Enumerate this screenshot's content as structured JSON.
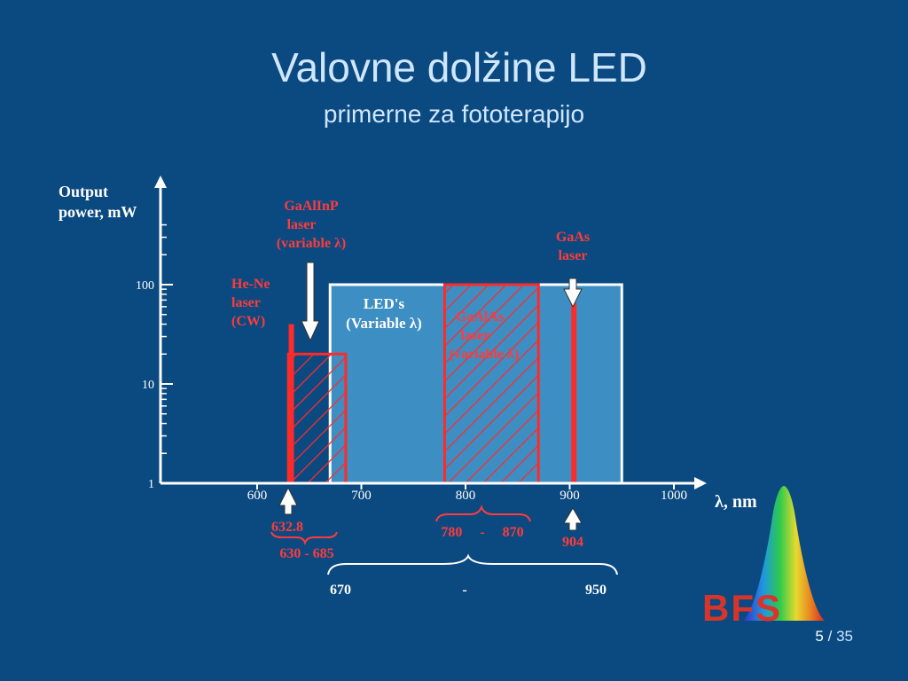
{
  "slide": {
    "title": "Valovne dolžine LED",
    "subtitle": "primerne za fototerapijo",
    "page": {
      "current": "5",
      "separator": "/",
      "total": "35"
    },
    "logo_text": "BFS"
  },
  "colors": {
    "background": "#0b4a80",
    "led_fill": "#3d8ec2",
    "laser_red": "#ff2a2a",
    "text_light": "#cfe6ff"
  },
  "chart_data": {
    "type": "bar",
    "ylabel_line1": "Output",
    "ylabel_line2": "power, mW",
    "xlabel": "λ, nm",
    "xlim": [
      550,
      1060
    ],
    "yscale": "log",
    "ylim": [
      1,
      100
    ],
    "x_ticks": [
      600,
      700,
      800,
      900,
      1000
    ],
    "y_ticks": [
      1,
      10,
      100
    ],
    "regions": [
      {
        "name": "LED's",
        "label_line1": "LED's",
        "label_line2": "(Variable λ)",
        "x_from": 670,
        "x_to": 950,
        "y_max": 100,
        "style": "solid-blue"
      },
      {
        "name": "GaAlInP laser",
        "label_lines": [
          "GaAlInP",
          "laser",
          "(variable λ)"
        ],
        "x_from": 630,
        "x_to": 685,
        "y_max": 20,
        "style": "hatched-red"
      },
      {
        "name": "GaAlAs laser",
        "label_lines": [
          "GaAlAs",
          "laser",
          "(variable λ)"
        ],
        "x_from": 780,
        "x_to": 870,
        "y_max": 100,
        "style": "hatched-red"
      }
    ],
    "lines": [
      {
        "name": "He-Ne laser",
        "label_lines": [
          "He-Ne",
          "laser",
          "(CW)"
        ],
        "x": 632.8,
        "y_max": 40
      },
      {
        "name": "GaAs laser",
        "label_lines": [
          "GaAs",
          "laser"
        ],
        "x": 904,
        "y_max": 65
      }
    ],
    "annotations": {
      "hene_value": "632.8",
      "gaalinp_range": "630 - 685",
      "gaalas_range": "780     -     870",
      "gaas_value": "904",
      "led_range_from": "670",
      "led_range_dash": "-",
      "led_range_to": "950"
    }
  }
}
